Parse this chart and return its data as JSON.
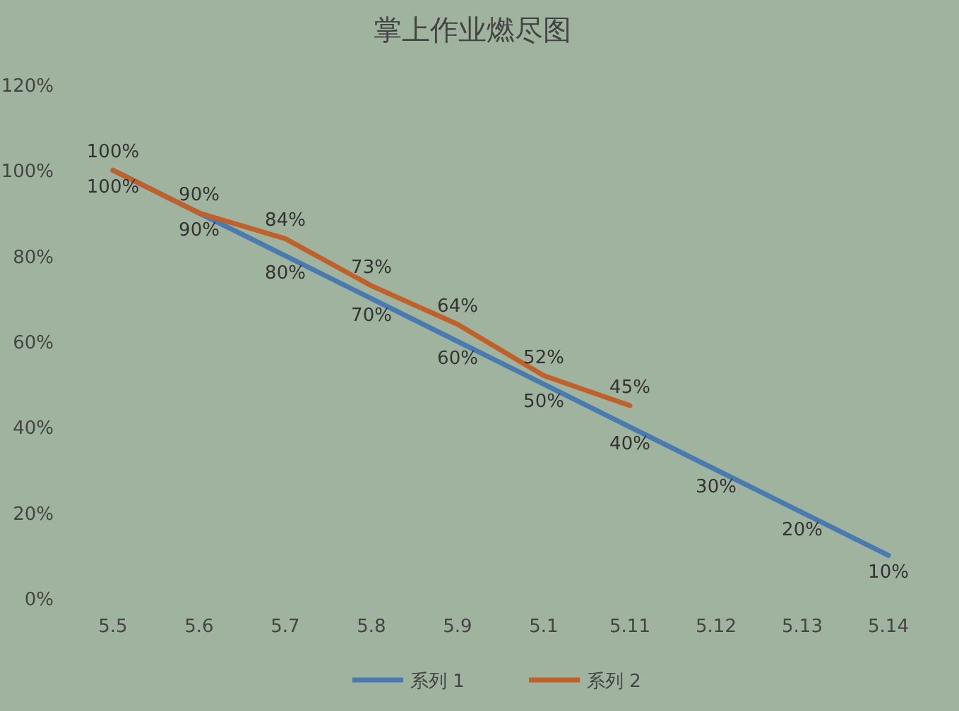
{
  "chart_data": {
    "type": "line",
    "title": "掌上作业燃尽图",
    "categories": [
      "5.5",
      "5.6",
      "5.7",
      "5.8",
      "5.9",
      "5.1",
      "5.11",
      "5.12",
      "5.13",
      "5.14"
    ],
    "series": [
      {
        "name": "系列 1",
        "color": "#4a7bb0",
        "values": [
          100,
          90,
          80,
          70,
          60,
          50,
          40,
          30,
          20,
          10
        ],
        "value_labels": [
          "100%",
          "90%",
          "80%",
          "70%",
          "60%",
          "50%",
          "40%",
          "30%",
          "20%",
          "10%"
        ]
      },
      {
        "name": "系列 2",
        "color": "#c0612b",
        "values": [
          100,
          90,
          84,
          73,
          64,
          52,
          45,
          null,
          null,
          null
        ],
        "value_labels": [
          "100%",
          "90%",
          "84%",
          "73%",
          "64%",
          "52%",
          "45%",
          null,
          null,
          null
        ]
      }
    ],
    "ylim": [
      0,
      120
    ],
    "yticks": [
      {
        "value": 0,
        "label": "0%"
      },
      {
        "value": 20,
        "label": "20%"
      },
      {
        "value": 40,
        "label": "40%"
      },
      {
        "value": 60,
        "label": "60%"
      },
      {
        "value": 80,
        "label": "80%"
      },
      {
        "value": 100,
        "label": "100%"
      },
      {
        "value": 120,
        "label": "120%"
      }
    ],
    "grid": false,
    "legend": "bottom",
    "marker": "none",
    "line_style": "solid"
  }
}
